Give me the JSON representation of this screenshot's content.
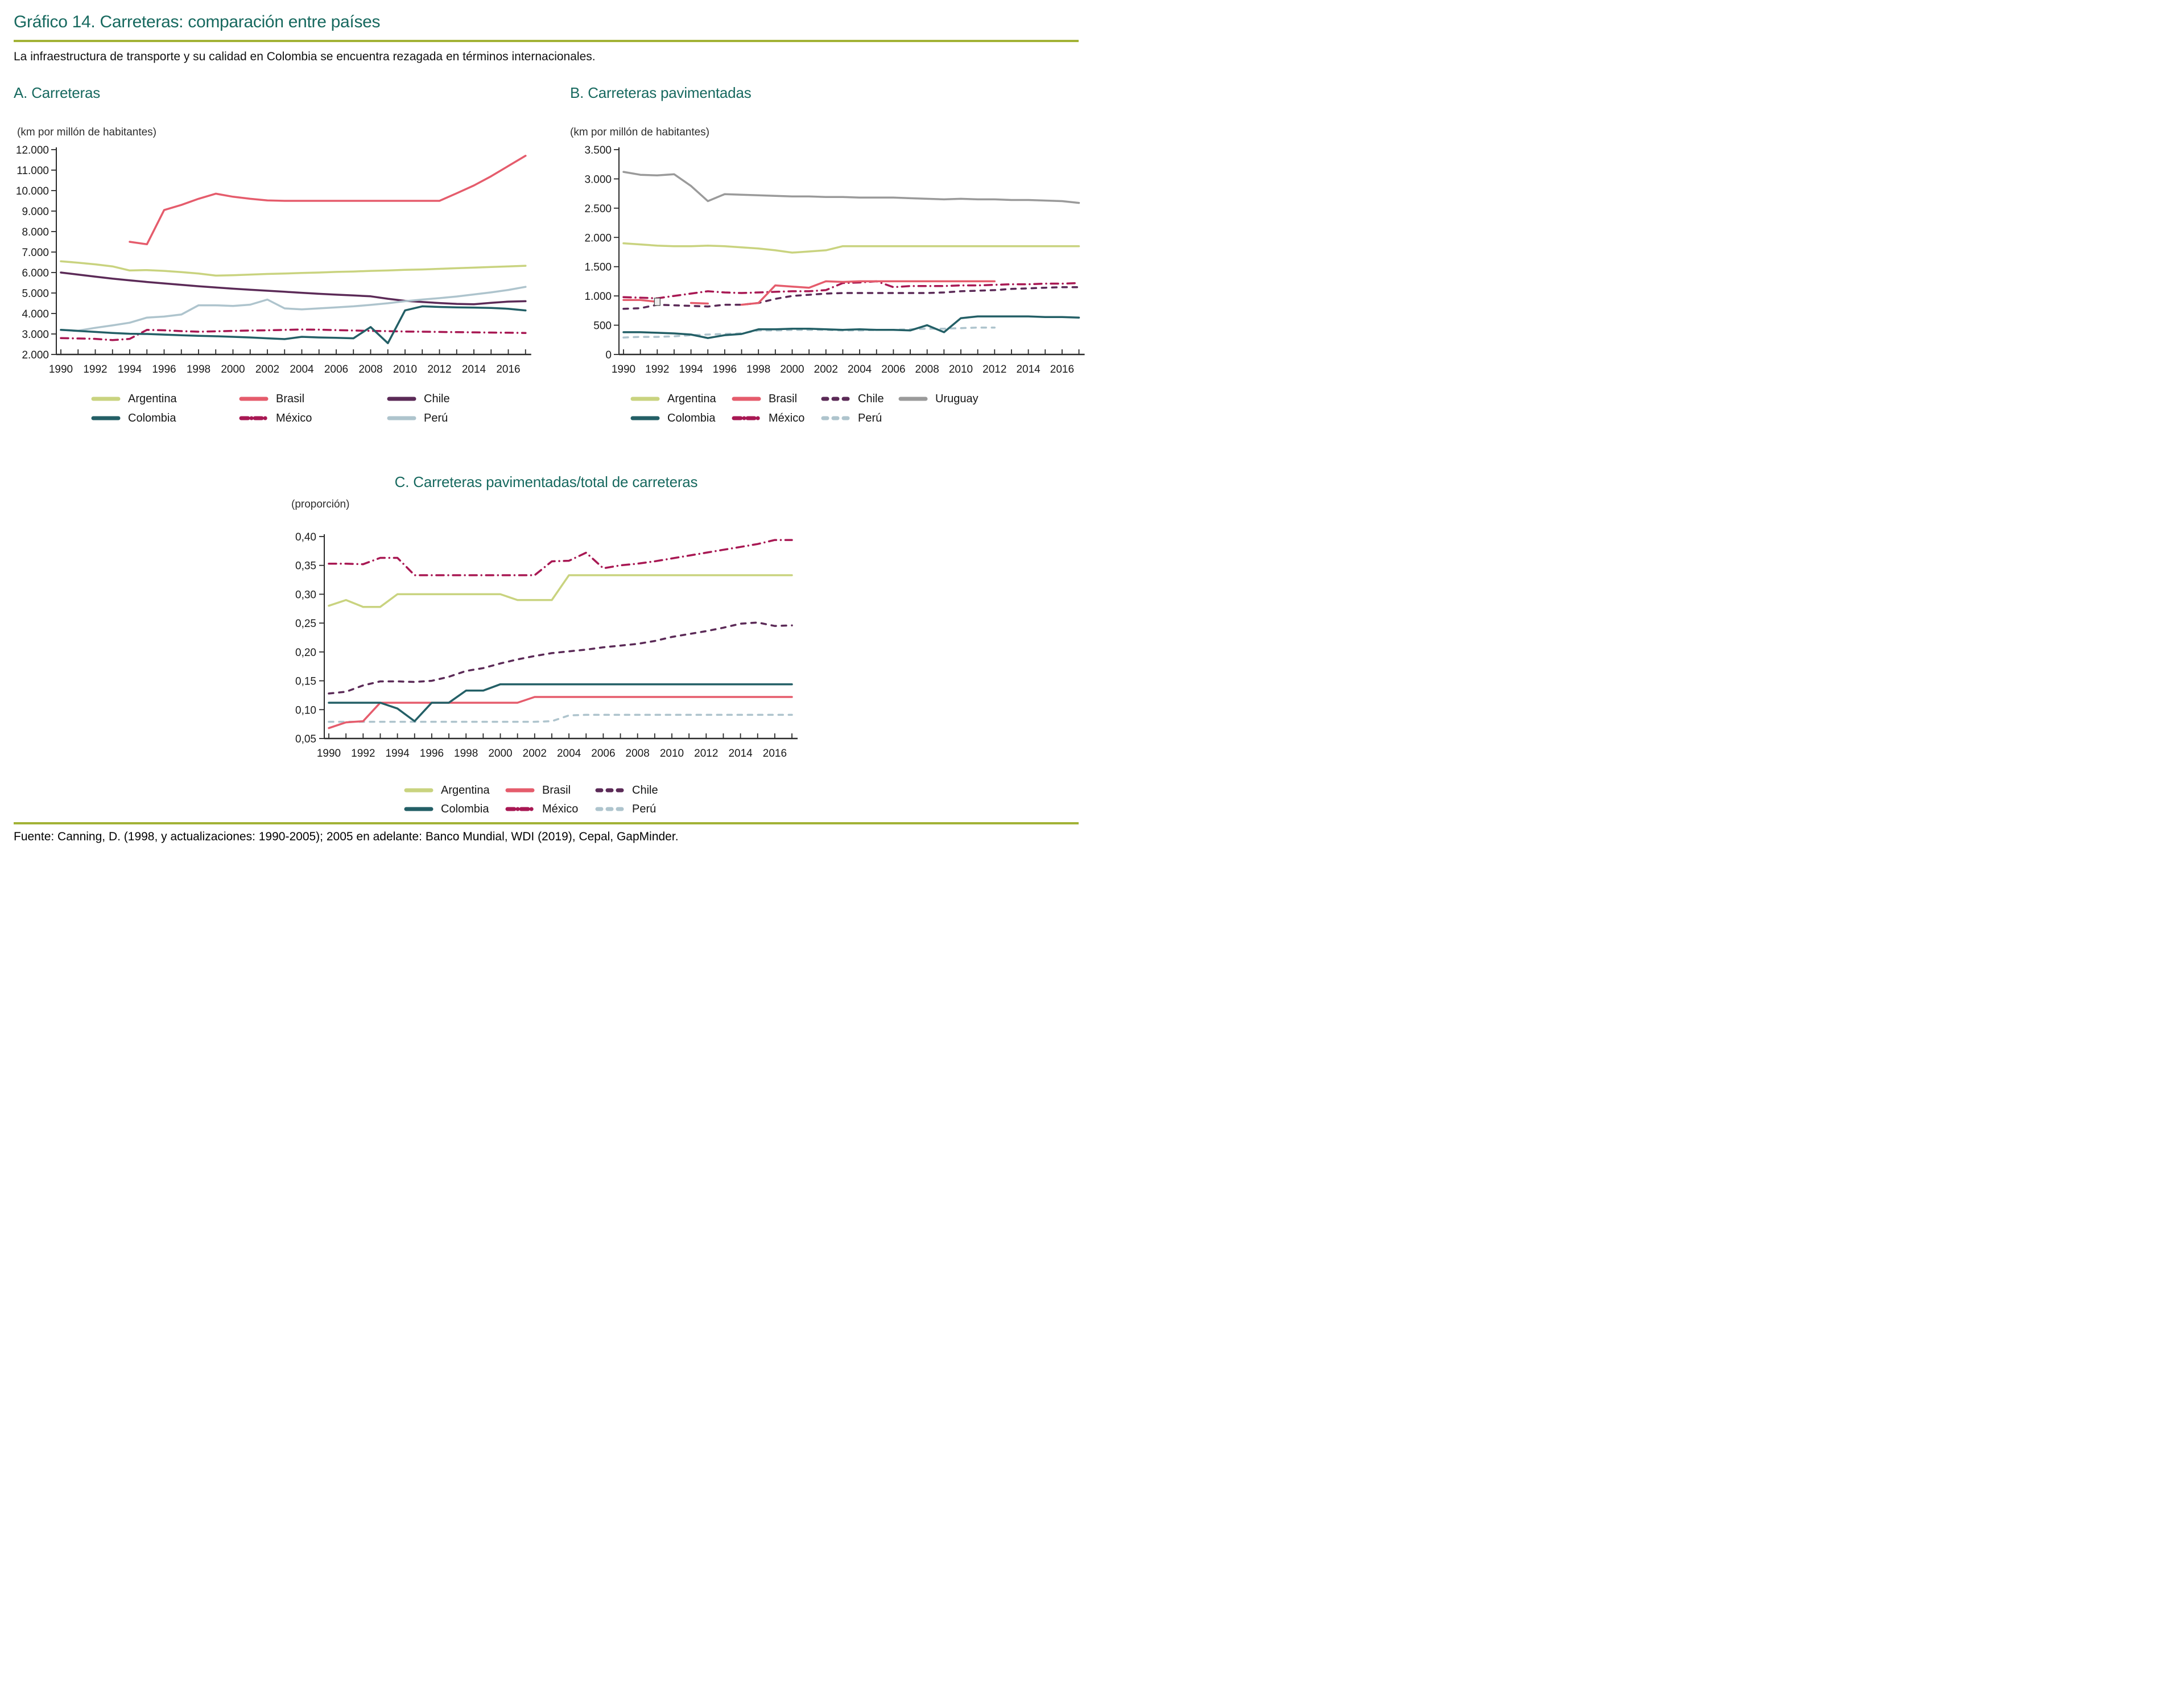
{
  "page": {
    "title": "Gráfico 14. Carreteras: comparación entre países",
    "subtitle": "La infraestructura de transporte y su calidad en Colombia se encuentra rezagada en términos internacionales.",
    "source": "Fuente: Canning, D. (1998, y actualizaciones: 1990-2005); 2005 en adelante: Banco Mundial, WDI (2019), Cepal, GapMinder.",
    "accent_color": "#17695f",
    "rule_color": "#a2b236",
    "axis_color": "#2a2a2a",
    "text_color": "#1a1a1a"
  },
  "chart_data": [
    {
      "id": "A",
      "type": "line",
      "heading": "A. Carreteras",
      "unit": "(km por millón de habitantes)",
      "x_start": 1990,
      "x_end": 2017,
      "xticks": [
        1990,
        1992,
        1994,
        1996,
        1998,
        2000,
        2002,
        2004,
        2006,
        2008,
        2010,
        2012,
        2014,
        2016
      ],
      "ylim": [
        2000,
        12000
      ],
      "grid": false,
      "legend_position": "bottom",
      "yticks": [
        {
          "v": 2000,
          "label": "2.000"
        },
        {
          "v": 3000,
          "label": "3.000"
        },
        {
          "v": 4000,
          "label": "4.000"
        },
        {
          "v": 5000,
          "label": "5.000"
        },
        {
          "v": 6000,
          "label": "6.000"
        },
        {
          "v": 7000,
          "label": "7.000"
        },
        {
          "v": 8000,
          "label": "8.000"
        },
        {
          "v": 9000,
          "label": "9.000"
        },
        {
          "v": 10000,
          "label": "10.000"
        },
        {
          "v": 11000,
          "label": "11.000"
        },
        {
          "v": 12000,
          "label": "12.000"
        }
      ],
      "series": [
        {
          "name": "Argentina",
          "color": "#c9d37f",
          "style": "solid",
          "values": [
            6550,
            6480,
            6400,
            6300,
            6100,
            6120,
            6080,
            6020,
            5950,
            5850,
            5870,
            5900,
            5930,
            5950,
            5980,
            6000,
            6030,
            6050,
            6080,
            6100,
            6130,
            6150,
            6180,
            6210,
            6240,
            6270,
            6300,
            6330
          ]
        },
        {
          "name": "Chile",
          "color": "#5b2a57",
          "style": "solid",
          "values": [
            6000,
            5900,
            5800,
            5700,
            5620,
            5540,
            5470,
            5400,
            5330,
            5270,
            5210,
            5160,
            5110,
            5060,
            5010,
            4960,
            4920,
            4880,
            4840,
            4720,
            4620,
            4560,
            4510,
            4470,
            4450,
            4520,
            4580,
            4600
          ]
        },
        {
          "name": "Perú",
          "color": "#aec4cd",
          "style": "solid",
          "values": [
            3200,
            3160,
            3300,
            3420,
            3550,
            3800,
            3850,
            3950,
            4400,
            4400,
            4370,
            4430,
            4680,
            4250,
            4200,
            4250,
            4300,
            4350,
            4420,
            4500,
            4600,
            4680,
            4750,
            4830,
            4930,
            5030,
            5150,
            5300
          ]
        },
        {
          "name": "México",
          "color": "#a81853",
          "style": "dashdot",
          "values": [
            2800,
            2780,
            2760,
            2700,
            2760,
            3200,
            3180,
            3140,
            3110,
            3130,
            3150,
            3170,
            3180,
            3200,
            3220,
            3210,
            3190,
            3170,
            3150,
            3140,
            3120,
            3110,
            3100,
            3090,
            3080,
            3070,
            3060,
            3050
          ]
        },
        {
          "name": "Brasil",
          "color": "#e55c6c",
          "style": "solid",
          "values": [
            null,
            null,
            null,
            null,
            7500,
            7380,
            9050,
            9300,
            9600,
            9850,
            9700,
            9600,
            9520,
            9500,
            9500,
            9500,
            9500,
            9500,
            9500,
            9500,
            9500,
            9500,
            9500,
            9870,
            10250,
            10700,
            11200,
            11700
          ]
        },
        {
          "name": "Colombia",
          "color": "#235f66",
          "style": "solid",
          "values": [
            3200,
            3150,
            3100,
            3050,
            3010,
            3000,
            2970,
            2940,
            2910,
            2890,
            2860,
            2830,
            2790,
            2750,
            2860,
            2830,
            2810,
            2790,
            3340,
            2550,
            4150,
            4350,
            4320,
            4300,
            4290,
            4270,
            4230,
            4150
          ]
        }
      ],
      "legend_rows": [
        [
          "Argentina",
          "Brasil",
          "Chile"
        ],
        [
          "Colombia",
          "México",
          "Perú"
        ]
      ]
    },
    {
      "id": "B",
      "type": "line",
      "heading": "B. Carreteras pavimentadas",
      "unit": "(km por millón de habitantes)",
      "x_start": 1990,
      "x_end": 2017,
      "xticks": [
        1990,
        1992,
        1994,
        1996,
        1998,
        2000,
        2002,
        2004,
        2006,
        2008,
        2010,
        2012,
        2014,
        2016
      ],
      "ylim": [
        0,
        3500
      ],
      "grid": false,
      "legend_position": "bottom",
      "yticks": [
        {
          "v": 0,
          "label": "0"
        },
        {
          "v": 500,
          "label": "500"
        },
        {
          "v": 1000,
          "label": "1.000"
        },
        {
          "v": 1500,
          "label": "1.500"
        },
        {
          "v": 2000,
          "label": "2.000"
        },
        {
          "v": 2500,
          "label": "2.500"
        },
        {
          "v": 3000,
          "label": "3.000"
        },
        {
          "v": 3500,
          "label": "3.500"
        }
      ],
      "marker_square": {
        "year": 1992,
        "value": 895
      },
      "series": [
        {
          "name": "Uruguay",
          "color": "#9a9a9a",
          "style": "solid",
          "values": [
            3120,
            3070,
            3060,
            3080,
            2880,
            2620,
            2740,
            2730,
            2720,
            2710,
            2700,
            2700,
            2690,
            2690,
            2680,
            2680,
            2680,
            2670,
            2660,
            2650,
            2660,
            2650,
            2650,
            2640,
            2640,
            2630,
            2620,
            2590
          ]
        },
        {
          "name": "Argentina",
          "color": "#c9d37f",
          "style": "solid",
          "values": [
            1900,
            1880,
            1860,
            1850,
            1850,
            1860,
            1850,
            1830,
            1810,
            1780,
            1740,
            1760,
            1780,
            1850,
            1850,
            1850,
            1850,
            1850,
            1850,
            1850,
            1850,
            1850,
            1850,
            1850,
            1850,
            1850,
            1850,
            1850
          ]
        },
        {
          "name": "México",
          "color": "#a81853",
          "style": "dashdot",
          "values": [
            980,
            970,
            960,
            1000,
            1040,
            1080,
            1060,
            1050,
            1060,
            1070,
            1080,
            1080,
            1100,
            1220,
            1230,
            1250,
            1150,
            1170,
            1170,
            1170,
            1180,
            1180,
            1190,
            1200,
            1200,
            1210,
            1210,
            1220
          ]
        },
        {
          "name": "Chile",
          "color": "#5b2a57",
          "style": "dashed",
          "values": [
            780,
            790,
            850,
            840,
            830,
            820,
            850,
            850,
            880,
            950,
            1000,
            1020,
            1040,
            1050,
            1050,
            1050,
            1050,
            1050,
            1050,
            1060,
            1080,
            1090,
            1100,
            1120,
            1130,
            1140,
            1150,
            1150
          ]
        },
        {
          "name": "Perú",
          "color": "#aec4cd",
          "style": "dashed",
          "values": [
            290,
            300,
            300,
            310,
            330,
            340,
            350,
            360,
            410,
            410,
            420,
            420,
            420,
            410,
            410,
            420,
            420,
            430,
            440,
            440,
            450,
            460,
            460,
            null,
            null,
            null,
            null,
            null
          ]
        },
        {
          "name": "Brasil",
          "color": "#e55c6c",
          "style": "solid",
          "values": [
            930,
            930,
            900,
            null,
            880,
            870,
            null,
            850,
            880,
            1180,
            1160,
            1140,
            1250,
            1240,
            1250,
            1250,
            1250,
            1250,
            1250,
            1250,
            1250,
            1250,
            1250,
            null,
            null,
            null,
            null,
            null
          ]
        },
        {
          "name": "Colombia",
          "color": "#235f66",
          "style": "solid",
          "values": [
            380,
            380,
            370,
            360,
            340,
            280,
            330,
            350,
            430,
            430,
            440,
            440,
            430,
            420,
            430,
            420,
            420,
            410,
            500,
            380,
            620,
            650,
            650,
            650,
            650,
            640,
            640,
            630
          ]
        }
      ],
      "legend_rows": [
        [
          "Argentina",
          "Brasil",
          "Chile",
          "Uruguay"
        ],
        [
          "Colombia",
          "México",
          "Perú"
        ]
      ]
    },
    {
      "id": "C",
      "type": "line",
      "heading": "C. Carreteras pavimentadas/total de carreteras",
      "unit": "(proporción)",
      "x_start": 1990,
      "x_end": 2017,
      "xticks": [
        1990,
        1992,
        1994,
        1996,
        1998,
        2000,
        2002,
        2004,
        2006,
        2008,
        2010,
        2012,
        2014,
        2016
      ],
      "ylim": [
        0.05,
        0.4
      ],
      "grid": false,
      "legend_position": "bottom",
      "yticks": [
        {
          "v": 0.05,
          "label": "0,05"
        },
        {
          "v": 0.1,
          "label": "0,10"
        },
        {
          "v": 0.15,
          "label": "0,15"
        },
        {
          "v": 0.2,
          "label": "0,20"
        },
        {
          "v": 0.25,
          "label": "0,25"
        },
        {
          "v": 0.3,
          "label": "0,30"
        },
        {
          "v": 0.35,
          "label": "0,35"
        },
        {
          "v": 0.4,
          "label": "0,40"
        }
      ],
      "series": [
        {
          "name": "Argentina",
          "color": "#c9d37f",
          "style": "solid",
          "values": [
            0.28,
            0.29,
            0.278,
            0.278,
            0.3,
            0.3,
            0.3,
            0.3,
            0.3,
            0.3,
            0.3,
            0.29,
            0.29,
            0.29,
            0.333,
            0.333,
            0.333,
            0.333,
            0.333,
            0.333,
            0.333,
            0.333,
            0.333,
            0.333,
            0.333,
            0.333,
            0.333,
            0.333
          ]
        },
        {
          "name": "Chile",
          "color": "#5b2a57",
          "style": "dashed",
          "values": [
            0.128,
            0.131,
            0.142,
            0.149,
            0.149,
            0.148,
            0.15,
            0.157,
            0.167,
            0.172,
            0.18,
            0.187,
            0.193,
            0.198,
            0.201,
            0.204,
            0.208,
            0.211,
            0.214,
            0.219,
            0.226,
            0.231,
            0.236,
            0.242,
            0.249,
            0.251,
            0.245,
            0.246
          ]
        },
        {
          "name": "Perú",
          "color": "#aec4cd",
          "style": "dashed",
          "values": [
            0.079,
            0.079,
            0.079,
            0.079,
            0.079,
            0.079,
            0.079,
            0.079,
            0.079,
            0.079,
            0.079,
            0.079,
            0.079,
            0.08,
            0.09,
            0.091,
            0.091,
            0.091,
            0.091,
            0.091,
            0.091,
            0.091,
            0.091,
            0.091,
            0.091,
            0.091,
            0.091,
            0.091
          ]
        },
        {
          "name": "Brasil",
          "color": "#e55c6c",
          "style": "solid",
          "values": [
            0.068,
            0.078,
            0.08,
            0.112,
            0.112,
            0.112,
            0.112,
            0.112,
            0.112,
            0.112,
            0.112,
            0.112,
            0.122,
            0.122,
            0.122,
            0.122,
            0.122,
            0.122,
            0.122,
            0.122,
            0.122,
            0.122,
            0.122,
            0.122,
            0.122,
            0.122,
            0.122,
            0.122
          ]
        },
        {
          "name": "México",
          "color": "#a81853",
          "style": "dashdot",
          "values": [
            0.353,
            0.353,
            0.352,
            0.363,
            0.363,
            0.333,
            0.333,
            0.333,
            0.333,
            0.333,
            0.333,
            0.333,
            0.333,
            0.357,
            0.358,
            0.372,
            0.345,
            0.35,
            0.353,
            0.357,
            0.362,
            0.367,
            0.372,
            0.377,
            0.382,
            0.387,
            0.394,
            0.394
          ]
        },
        {
          "name": "Colombia",
          "color": "#235f66",
          "style": "solid",
          "values": [
            0.112,
            0.112,
            0.112,
            0.112,
            0.102,
            0.08,
            0.112,
            0.112,
            0.133,
            0.133,
            0.144,
            0.144,
            0.144,
            0.144,
            0.144,
            0.144,
            0.144,
            0.144,
            0.144,
            0.144,
            0.144,
            0.144,
            0.144,
            0.144,
            0.144,
            0.144,
            0.144,
            0.144
          ]
        }
      ],
      "legend_rows": [
        [
          "Argentina",
          "Brasil",
          "Chile"
        ],
        [
          "Colombia",
          "México",
          "Perú"
        ]
      ]
    }
  ]
}
